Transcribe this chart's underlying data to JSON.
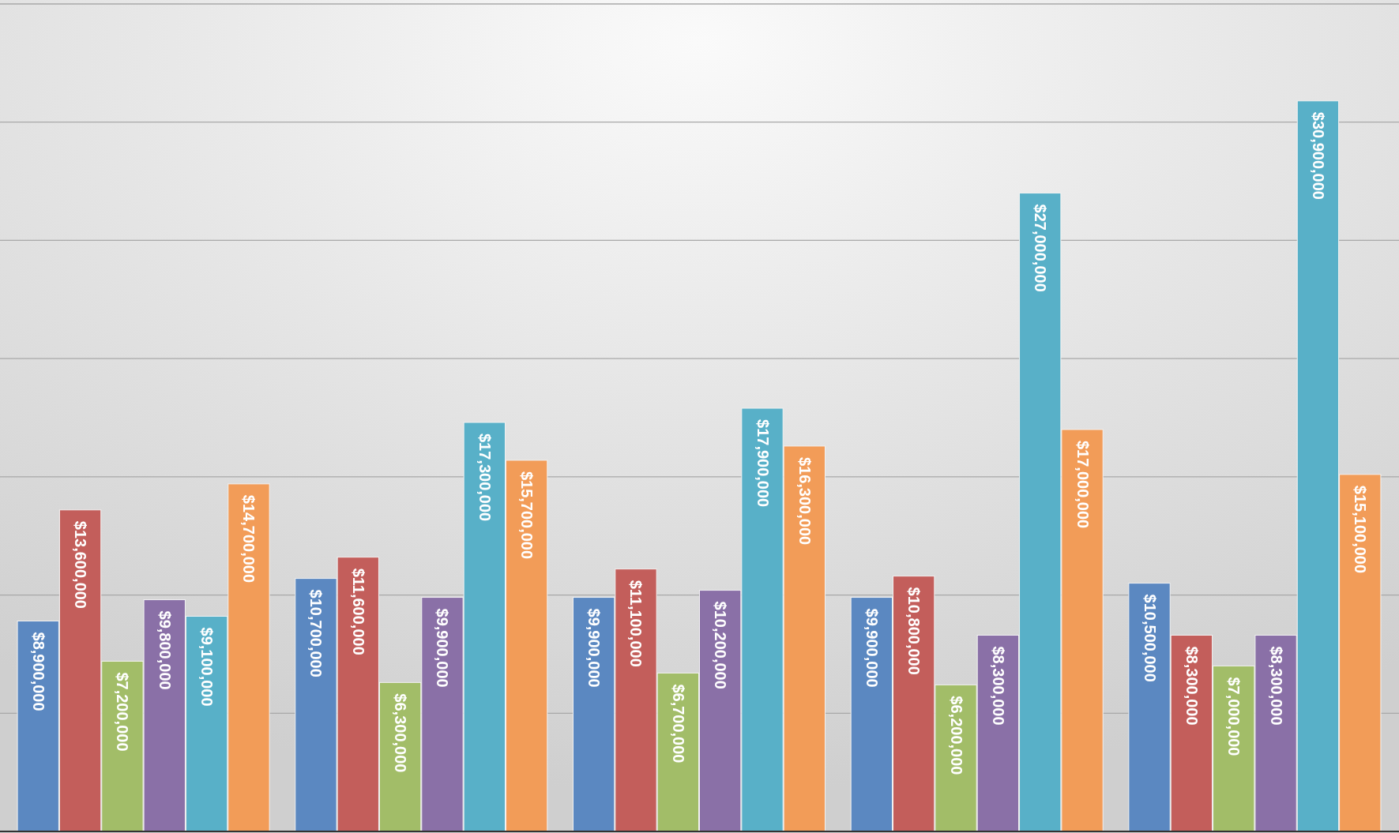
{
  "chart_data": {
    "type": "bar",
    "categories": [
      null,
      null,
      null,
      null,
      null
    ],
    "series": [
      {
        "color": "#5b88c1",
        "values": [
          8900000,
          10700000,
          9900000,
          9900000,
          10500000
        ],
        "value_labels": [
          "$8,900,000",
          "$10,700,000",
          "$9,900,000",
          "$9,900,000",
          "$10,500,000"
        ]
      },
      {
        "color": "#c35e5b",
        "values": [
          13600000,
          11600000,
          11100000,
          10800000,
          8300000
        ],
        "value_labels": [
          "$13,600,000",
          "$11,600,000",
          "$11,100,000",
          "$10,800,000",
          "$8,300,000"
        ]
      },
      {
        "color": "#a2bd68",
        "values": [
          7200000,
          6300000,
          6700000,
          6200000,
          7000000
        ],
        "value_labels": [
          "$7,200,000",
          "$6,300,000",
          "$6,700,000",
          "$6,200,000",
          "$7,000,000"
        ]
      },
      {
        "color": "#8a70a7",
        "values": [
          9800000,
          9900000,
          10200000,
          8300000,
          8300000
        ],
        "value_labels": [
          "$9,800,000",
          "$9,900,000",
          "$10,200,000",
          "$8,300,000",
          "$8,300,000"
        ]
      },
      {
        "color": "#58b0c8",
        "values": [
          9100000,
          17300000,
          17900000,
          27000000,
          30900000
        ],
        "value_labels": [
          "$9,100,000",
          "$17,300,000",
          "$17,900,000",
          "$27,000,000",
          "$30,900,000"
        ]
      },
      {
        "color": "#f29c58",
        "values": [
          14700000,
          15700000,
          16300000,
          17000000,
          15100000
        ],
        "value_labels": [
          "$14,700,000",
          "$15,700,000",
          "$16,300,000",
          "$17,000,000",
          "$15,100,000"
        ]
      }
    ],
    "ylim": [
      0,
      35000000
    ],
    "yticks": [
      {
        "value": 0,
        "label": null
      },
      {
        "value": 5000000,
        "label": null
      },
      {
        "value": 10000000,
        "label": null
      },
      {
        "value": 15000000,
        "label": null
      },
      {
        "value": 20000000,
        "label": null
      },
      {
        "value": 25000000,
        "label": null
      },
      {
        "value": 30000000,
        "label": null
      },
      {
        "value": 35000000,
        "label": null
      }
    ],
    "grid": "y"
  }
}
